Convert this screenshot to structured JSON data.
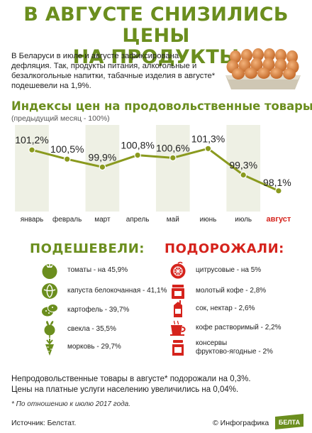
{
  "header": {
    "title_line1": "В АВГУСТЕ СНИЗИЛИСЬ ЦЕНЫ",
    "title_line2": "НА ПРОДУКТЫ",
    "intro": "В Беларуси в июле и августе зафиксирована дефляция. Так, продукты питания, алкогольные и безалкогольные напитки, табачные изделия в августе* подешевели на 1,9%."
  },
  "chart_data": {
    "type": "line",
    "title": "Индексы цен на продовольственные товары:",
    "subtitle": "(предыдущий месяц - 100%)",
    "categories": [
      "январь",
      "февраль",
      "март",
      "апрель",
      "май",
      "июнь",
      "июль",
      "август"
    ],
    "values": [
      101.2,
      100.5,
      99.9,
      100.8,
      100.6,
      101.3,
      99.3,
      98.1
    ],
    "value_labels": [
      "101,2%",
      "100,5%",
      "99,9%",
      "100,8%",
      "100,6%",
      "101,3%",
      "99,3%",
      "98,1%"
    ],
    "highlight_category": "август",
    "ylim": [
      97.5,
      101.8
    ],
    "grid": false,
    "colors": {
      "line": "#8a9a1e",
      "point": "#8a9a1e",
      "band": "#eef0e4",
      "highlight": "#d5231c"
    }
  },
  "cheaper": {
    "heading": "ПОДЕШЕВЕЛИ:",
    "items": [
      {
        "label": "томаты - на 45,9%",
        "icon": "tomato-icon"
      },
      {
        "label": "капуста белокочанная - 41,1%",
        "icon": "cabbage-icon"
      },
      {
        "label": "картофель - 39,7%",
        "icon": "potato-icon"
      },
      {
        "label": "свекла - 35,5%",
        "icon": "beet-icon"
      },
      {
        "label": "морковь - 29,7%",
        "icon": "carrot-icon"
      }
    ]
  },
  "pricier": {
    "heading": "ПОДОРОЖАЛИ:",
    "items": [
      {
        "label": "цитрусовые - на 5%",
        "icon": "citrus-icon"
      },
      {
        "label": "молотый кофе - 2,8%",
        "icon": "ground-coffee-icon"
      },
      {
        "label": "сок, нектар - 2,6%",
        "icon": "juice-icon"
      },
      {
        "label": "кофе растворимый - 2,2%",
        "icon": "instant-coffee-icon"
      },
      {
        "label": "консервы\nфруктово-ягодные - 2%",
        "icon": "jar-icon"
      }
    ]
  },
  "footer": {
    "line1": "Непродовольственные товары в августе* подорожали на 0,3%.",
    "line2": "Цены на платные услуги населению увеличились на 0,04%.",
    "note": "* По отношению к июлю 2017 года.",
    "source": "Источник: Белстат.",
    "credit": "© Инфографика",
    "logo": "БЕЛТА"
  }
}
